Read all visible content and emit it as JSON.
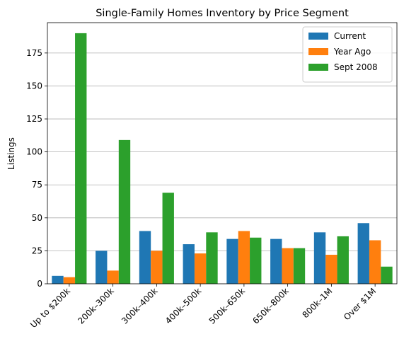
{
  "chart_data": {
    "type": "bar",
    "title": "Single-Family Homes Inventory by Price Segment",
    "xlabel": "",
    "ylabel": "Listings",
    "categories": [
      "Up to $200k",
      "200k–300k",
      "300k–400k",
      "400k–500k",
      "500k–650k",
      "650k–800k",
      "800k–1M",
      "Over $1M"
    ],
    "series": [
      {
        "name": "Current",
        "color": "#1f77b4",
        "values": [
          6,
          25,
          40,
          30,
          34,
          34,
          39,
          46
        ]
      },
      {
        "name": "Year Ago",
        "color": "#ff7f0e",
        "values": [
          5,
          10,
          25,
          23,
          40,
          27,
          22,
          33
        ]
      },
      {
        "name": "Sept 2008",
        "color": "#2ca02c",
        "values": [
          190,
          109,
          69,
          39,
          35,
          27,
          36,
          13
        ]
      }
    ],
    "ylim": [
      0,
      198
    ],
    "yticks": [
      0,
      25,
      50,
      75,
      100,
      125,
      150,
      175
    ],
    "grid": "y",
    "legend_position": "top-right"
  }
}
